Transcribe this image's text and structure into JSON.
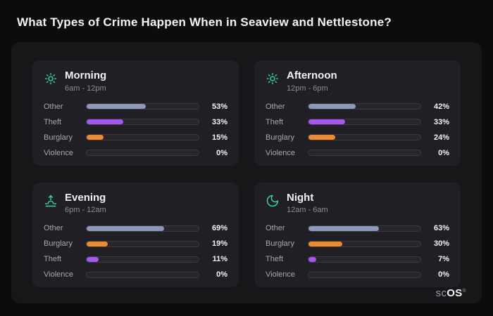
{
  "page_title": "What Types of Crime Happen When in Seaview and Nettlestone?",
  "logo": {
    "sc": "sc",
    "os": "OS",
    "reg": "®"
  },
  "colors": {
    "other": "#8e98ba",
    "theft": "#a855f7",
    "burglary": "#ef8b2a",
    "icon": "#33cfa2",
    "page_bg": "#0c0c0e",
    "panel_bg": "#17171a",
    "card_bg": "#202024"
  },
  "cards": [
    {
      "title": "Morning",
      "subtitle": "6am - 12pm",
      "icon": "sun",
      "rows": [
        {
          "label": "Other",
          "value": 53,
          "pct": "53%",
          "color": "#8e98ba"
        },
        {
          "label": "Theft",
          "value": 33,
          "pct": "33%",
          "color": "#a855f7"
        },
        {
          "label": "Burglary",
          "value": 15,
          "pct": "15%",
          "color": "#ef8b2a"
        },
        {
          "label": "Violence",
          "value": 0,
          "pct": "0%",
          "color": "#4a4a52"
        }
      ]
    },
    {
      "title": "Afternoon",
      "subtitle": "12pm - 6pm",
      "icon": "sun",
      "rows": [
        {
          "label": "Other",
          "value": 42,
          "pct": "42%",
          "color": "#8e98ba"
        },
        {
          "label": "Theft",
          "value": 33,
          "pct": "33%",
          "color": "#a855f7"
        },
        {
          "label": "Burglary",
          "value": 24,
          "pct": "24%",
          "color": "#ef8b2a"
        },
        {
          "label": "Violence",
          "value": 0,
          "pct": "0%",
          "color": "#4a4a52"
        }
      ]
    },
    {
      "title": "Evening",
      "subtitle": "6pm - 12am",
      "icon": "sunset",
      "rows": [
        {
          "label": "Other",
          "value": 69,
          "pct": "69%",
          "color": "#8e98ba"
        },
        {
          "label": "Burglary",
          "value": 19,
          "pct": "19%",
          "color": "#ef8b2a"
        },
        {
          "label": "Theft",
          "value": 11,
          "pct": "11%",
          "color": "#a855f7"
        },
        {
          "label": "Violence",
          "value": 0,
          "pct": "0%",
          "color": "#4a4a52"
        }
      ]
    },
    {
      "title": "Night",
      "subtitle": "12am - 6am",
      "icon": "moon",
      "rows": [
        {
          "label": "Other",
          "value": 63,
          "pct": "63%",
          "color": "#8e98ba"
        },
        {
          "label": "Burglary",
          "value": 30,
          "pct": "30%",
          "color": "#ef8b2a"
        },
        {
          "label": "Theft",
          "value": 7,
          "pct": "7%",
          "color": "#a855f7"
        },
        {
          "label": "Violence",
          "value": 0,
          "pct": "0%",
          "color": "#4a4a52"
        }
      ]
    }
  ],
  "chart_data": [
    {
      "type": "bar",
      "orientation": "horizontal",
      "title": "Morning",
      "subtitle": "6am - 12pm",
      "categories": [
        "Other",
        "Theft",
        "Burglary",
        "Violence"
      ],
      "values": [
        53,
        33,
        15,
        0
      ],
      "unit": "%",
      "xlim": [
        0,
        100
      ]
    },
    {
      "type": "bar",
      "orientation": "horizontal",
      "title": "Afternoon",
      "subtitle": "12pm - 6pm",
      "categories": [
        "Other",
        "Theft",
        "Burglary",
        "Violence"
      ],
      "values": [
        42,
        33,
        24,
        0
      ],
      "unit": "%",
      "xlim": [
        0,
        100
      ]
    },
    {
      "type": "bar",
      "orientation": "horizontal",
      "title": "Evening",
      "subtitle": "6pm - 12am",
      "categories": [
        "Other",
        "Burglary",
        "Theft",
        "Violence"
      ],
      "values": [
        69,
        19,
        11,
        0
      ],
      "unit": "%",
      "xlim": [
        0,
        100
      ]
    },
    {
      "type": "bar",
      "orientation": "horizontal",
      "title": "Night",
      "subtitle": "12am - 6am",
      "categories": [
        "Other",
        "Burglary",
        "Theft",
        "Violence"
      ],
      "values": [
        63,
        30,
        7,
        0
      ],
      "unit": "%",
      "xlim": [
        0,
        100
      ]
    }
  ]
}
